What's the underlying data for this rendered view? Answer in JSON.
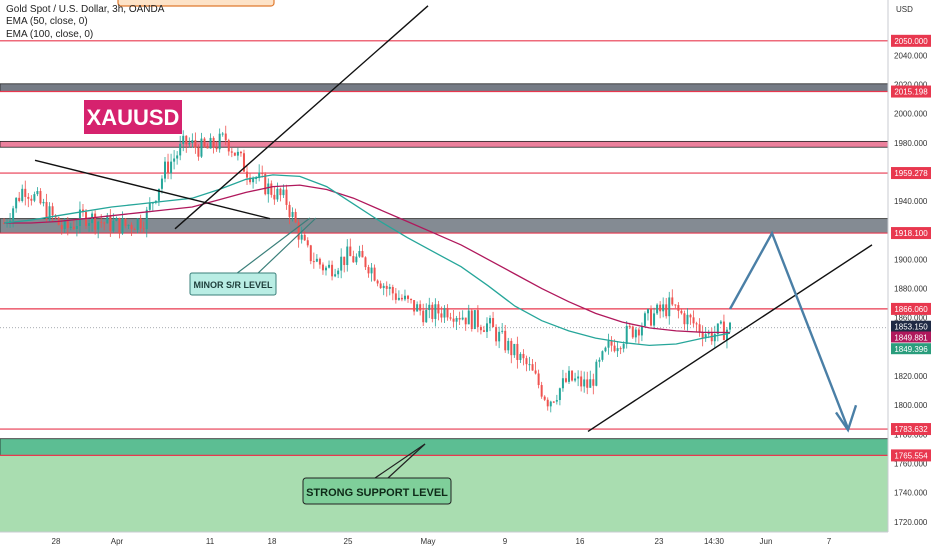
{
  "header": {
    "symbol_line": "Gold Spot / U.S. Dollar, 3h, OANDA",
    "ema50_line": "EMA (50, close, 0)",
    "ema100_line": "EMA (100, close, 0)"
  },
  "chart_data": {
    "type": "candlestick",
    "title": "XAUUSD",
    "currency": "USD",
    "ylim": [
      1713,
      2078
    ],
    "y_ticks": [
      1720,
      1740,
      1760,
      1780,
      1800,
      1820,
      1840,
      1860,
      1880,
      1900,
      1920,
      1940,
      1960,
      1980,
      2000,
      2020,
      2040
    ],
    "x_tick_labels": [
      "28",
      "Apr",
      "11",
      "18",
      "25",
      "May",
      "9",
      "16",
      "23",
      "14:30",
      "Jun",
      "7"
    ],
    "price_levels": [
      {
        "value": 2050.0,
        "label": "2050.000",
        "color": "#e8384f"
      },
      {
        "value": 2015.198,
        "label": "2015.198",
        "color": "#e8384f"
      },
      {
        "value": 1959.278,
        "label": "1959.278",
        "color": "#e8384f"
      },
      {
        "value": 1918.1,
        "label": "1918.100",
        "color": "#e8384f"
      },
      {
        "value": 1866.06,
        "label": "1866.060",
        "color": "#e8384f"
      },
      {
        "value": 1783.632,
        "label": "1783.632",
        "color": "#e8384f"
      },
      {
        "value": 1765.554,
        "label": "1765.554",
        "color": "#e8384f"
      }
    ],
    "price_badges": [
      {
        "value": 1853.15,
        "label": "1853.150",
        "sub": "02:22:23",
        "color": "#1f2a44"
      },
      {
        "value": 1849.881,
        "label": "1849.881",
        "color": "#b0185c"
      },
      {
        "value": 1849.396,
        "label": "1849.396",
        "color": "#2a9d7c"
      }
    ],
    "zones": [
      {
        "from": 2015.2,
        "to": 2020.5,
        "color": "#5d6470",
        "label": "resistance zone"
      },
      {
        "from": 1977,
        "to": 1981,
        "color": "#e96b8c",
        "label": "resistance zone"
      },
      {
        "from": 1918.1,
        "to": 1928,
        "color": "#6f7780",
        "label": "minor S/R zone"
      },
      {
        "from": 1765.554,
        "to": 1777,
        "color": "#4fb88e",
        "label": "support zone"
      }
    ],
    "annotations": [
      {
        "text": "XAUUSD",
        "kind": "symbol-label"
      },
      {
        "text": "MINOR S/R LEVEL",
        "kind": "callout"
      },
      {
        "text": "STRONG SUPPORT LEVEL",
        "kind": "callout"
      }
    ],
    "colors": {
      "up": "#26a69a",
      "down": "#ef5350",
      "ema50": "#26a69a",
      "ema100": "#b0185c",
      "projection": "#4a7fa6",
      "label_bg": "#d6226e",
      "support_area": "#a9ddb0"
    },
    "ema50": [
      1925,
      1927,
      1930,
      1933,
      1936,
      1938,
      1940,
      1942,
      1948,
      1955,
      1958,
      1957,
      1950,
      1938,
      1926,
      1915,
      1905,
      1895,
      1882,
      1868,
      1858,
      1851,
      1846,
      1843,
      1841,
      1842,
      1846,
      1849.4
    ],
    "ema100": [
      1925,
      1925,
      1926,
      1928,
      1930,
      1932,
      1934,
      1936,
      1941,
      1946,
      1950,
      1951,
      1948,
      1942,
      1934,
      1926,
      1918,
      1910,
      1900,
      1890,
      1880,
      1871,
      1863,
      1857,
      1853,
      1851,
      1850,
      1849.9
    ],
    "price_path": [
      1925,
      1950,
      1935,
      1920,
      1930,
      1925,
      1923,
      1928,
      1962,
      1980,
      1975,
      1983,
      1962,
      1950,
      1940,
      1905,
      1893,
      1902,
      1898,
      1880,
      1870,
      1862,
      1866,
      1860,
      1855,
      1840,
      1826,
      1803,
      1818,
      1813,
      1840,
      1850,
      1860,
      1868,
      1858,
      1848,
      1853
    ]
  }
}
